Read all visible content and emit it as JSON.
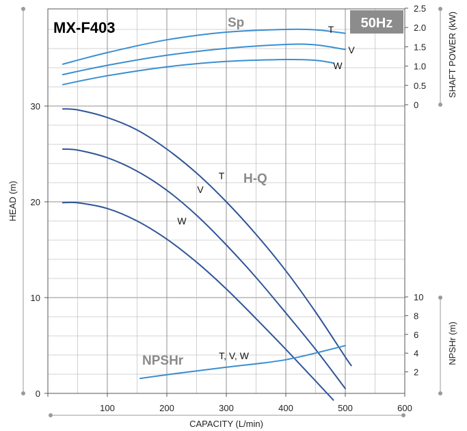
{
  "chart_data": {
    "type": "line",
    "title": "MX-F403",
    "frequency_badge": "50Hz",
    "xlabel": "CAPACITY (L/min)",
    "xlim": [
      0,
      600
    ],
    "x_ticks": [
      0,
      100,
      200,
      300,
      400,
      500,
      600
    ],
    "axes": {
      "head": {
        "label": "HEAD (m)",
        "lim": [
          0,
          40
        ],
        "ticks": [
          0,
          10,
          20,
          30
        ]
      },
      "shaft_power": {
        "label": "SHAFT POWER (kW)",
        "lim": [
          0,
          2.5
        ],
        "ticks": [
          "0",
          "0.5",
          "1.0",
          "1.5",
          "2.0",
          "2.5"
        ]
      },
      "npshr": {
        "label": "NPSHr (m)",
        "lim": [
          0,
          10
        ],
        "ticks": [
          2,
          4,
          6,
          8,
          10
        ]
      }
    },
    "groups": [
      {
        "label": "H-Q",
        "axis": "head",
        "color": "#2f5597",
        "series": [
          {
            "name": "T",
            "x": [
              25,
              50,
              100,
              150,
              200,
              250,
              300,
              350,
              400,
              450,
              500,
              510
            ],
            "y": [
              29.7,
              29.6,
              28.8,
              27.5,
              25.5,
              23.0,
              20.0,
              16.6,
              12.8,
              8.5,
              3.8,
              2.9
            ]
          },
          {
            "name": "V",
            "x": [
              25,
              50,
              100,
              150,
              200,
              250,
              300,
              350,
              400,
              450,
              500
            ],
            "y": [
              25.5,
              25.4,
              24.6,
              23.2,
              21.2,
              18.6,
              15.5,
              12.1,
              8.4,
              4.6,
              0.5
            ]
          },
          {
            "name": "W",
            "x": [
              25,
              50,
              100,
              150,
              200,
              250,
              300,
              350,
              400,
              450,
              480
            ],
            "y": [
              19.9,
              19.9,
              19.3,
              18.0,
              16.1,
              13.7,
              10.9,
              7.8,
              4.6,
              1.3,
              -0.7
            ]
          }
        ]
      },
      {
        "label": "Sp",
        "axis": "shaft_power",
        "color": "#3a8ed0",
        "series": [
          {
            "name": "T",
            "x": [
              25,
              100,
              200,
              300,
              400,
              450,
              500
            ],
            "y": [
              1.05,
              1.35,
              1.68,
              1.88,
              1.95,
              1.94,
              1.85
            ]
          },
          {
            "name": "V",
            "x": [
              25,
              100,
              200,
              300,
              400,
              450,
              500
            ],
            "y": [
              0.78,
              1.02,
              1.28,
              1.46,
              1.56,
              1.55,
              1.43
            ]
          },
          {
            "name": "W",
            "x": [
              25,
              100,
              200,
              300,
              400,
              450,
              480
            ],
            "y": [
              0.52,
              0.75,
              0.98,
              1.12,
              1.17,
              1.15,
              1.08
            ]
          }
        ]
      },
      {
        "label": "NPSHr",
        "axis": "npshr",
        "color": "#3a8ed0",
        "series": [
          {
            "name": "T, V, W",
            "x": [
              155,
              200,
              300,
              400,
              500
            ],
            "y": [
              1.3,
              1.7,
              2.5,
              3.3,
              4.8
            ]
          }
        ]
      }
    ],
    "grid": true
  }
}
